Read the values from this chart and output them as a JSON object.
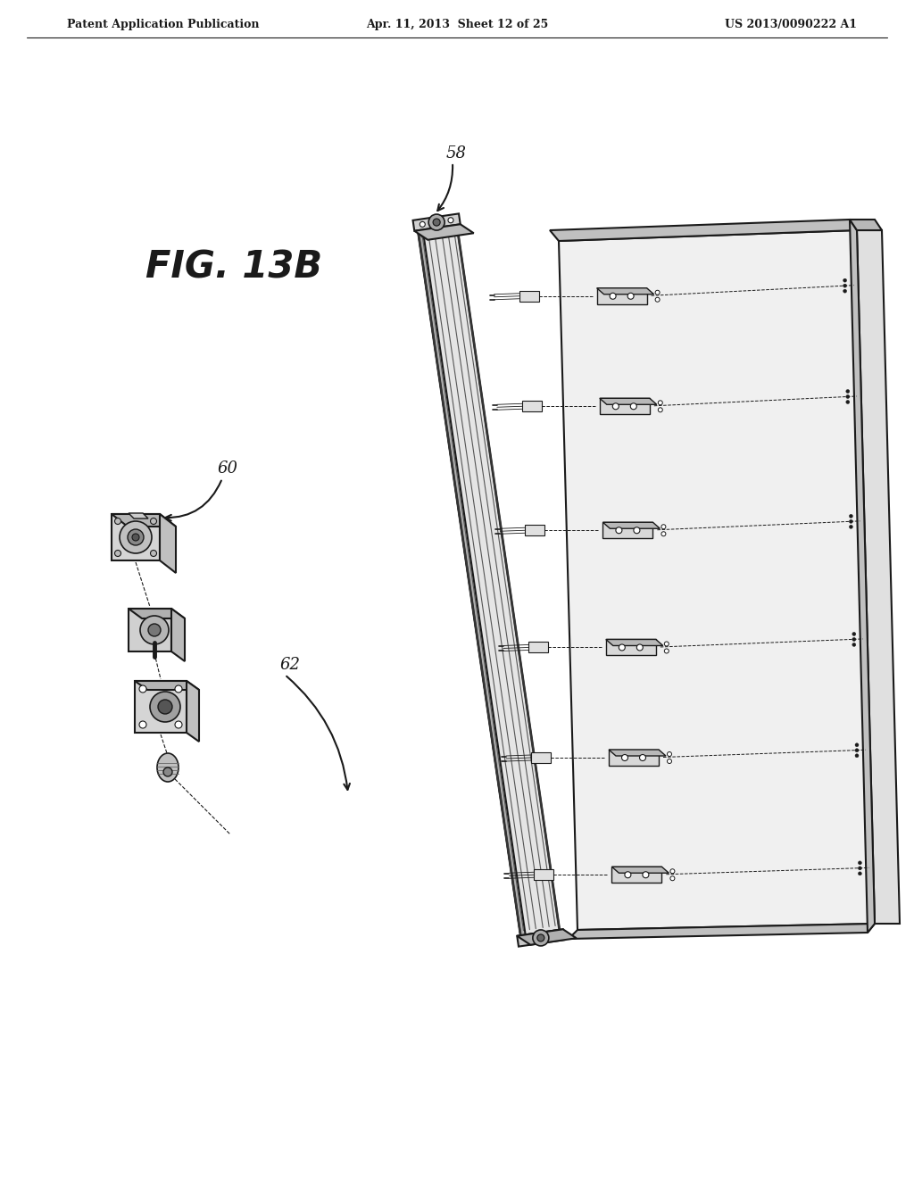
{
  "title_left": "Patent Application Publication",
  "title_mid": "Apr. 11, 2013  Sheet 12 of 25",
  "title_right": "US 2013/0090222 A1",
  "fig_label": "FIG. 13B",
  "ref_58": "58",
  "ref_60": "60",
  "ref_62": "62",
  "bg_color": "#ffffff",
  "line_color": "#1a1a1a",
  "gray_light": "#e8e8e8",
  "gray_mid": "#c8c8c8",
  "gray_dark": "#888888"
}
